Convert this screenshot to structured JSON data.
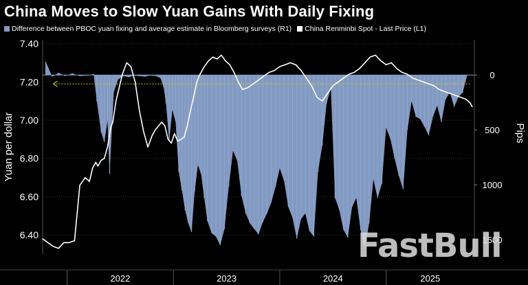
{
  "title": "China Moves to Slow Yuan Gains With Daily Fixing",
  "watermark": "FastBull",
  "colors": {
    "bars": "#8299c2",
    "line": "#ffffff",
    "guide": "#d4d400",
    "background": "#000000"
  },
  "chart_data": {
    "type": "bar",
    "legend": [
      {
        "name": "Difference between PBOC yuan fixing and average estimate in Bloomberg surveys (R1)",
        "color": "#8299c2"
      },
      {
        "name": "China Renminbi Spot - Last Price (L1)",
        "color": "#ffffff"
      }
    ],
    "y_left": {
      "label": "Yuan per dollar",
      "range": [
        6.3,
        7.42
      ],
      "ticks": [
        "7.40",
        "7.20",
        "7.00",
        "6.80",
        "6.60",
        "6.40"
      ]
    },
    "y_right": {
      "label": "Pips",
      "range": [
        1630,
        -320
      ],
      "ticks": [
        "0",
        "500",
        "1000",
        "1500"
      ]
    },
    "x_axis": {
      "range": [
        2021.77,
        2025.83
      ],
      "labels": [
        "2022",
        "2023",
        "2024",
        "2025"
      ]
    },
    "series": [
      {
        "name": "Difference between PBOC yuan fixing and average estimate in Bloomberg surveys (R1)",
        "type": "bar",
        "x": [
          2021.8,
          2021.86,
          2021.92,
          2021.98,
          2022.05,
          2022.12,
          2022.2,
          2022.25,
          2022.28,
          2022.32,
          2022.35,
          2022.38,
          2022.4,
          2022.44,
          2022.48,
          2022.53,
          2022.58,
          2022.63,
          2022.68,
          2022.73,
          2022.78,
          2022.84,
          2022.88,
          2022.91,
          2022.93,
          2022.96,
          2022.99,
          2023.02,
          2023.05,
          2023.08,
          2023.11,
          2023.14,
          2023.17,
          2023.2,
          2023.23,
          2023.26,
          2023.29,
          2023.32,
          2023.36,
          2023.4,
          2023.44,
          2023.48,
          2023.52,
          2023.56,
          2023.6,
          2023.64,
          2023.68,
          2023.72,
          2023.76,
          2023.8,
          2023.84,
          2023.88,
          2023.92,
          2023.96,
          2024.0,
          2024.04,
          2024.08,
          2024.12,
          2024.16,
          2024.2,
          2024.24,
          2024.28,
          2024.32,
          2024.36,
          2024.4,
          2024.44,
          2024.48,
          2024.52,
          2024.56,
          2024.6,
          2024.64,
          2024.68,
          2024.72,
          2024.76,
          2024.8,
          2024.84,
          2024.88,
          2024.92,
          2024.96,
          2025.0,
          2025.04,
          2025.08,
          2025.12,
          2025.16,
          2025.2,
          2025.24,
          2025.28,
          2025.32,
          2025.36,
          2025.4,
          2025.44,
          2025.48,
          2025.52,
          2025.56,
          2025.6,
          2025.64,
          2025.68,
          2025.72,
          2025.76
        ],
        "values": [
          -120,
          15,
          -20,
          10,
          -15,
          10,
          5,
          -10,
          240,
          520,
          610,
          420,
          900,
          150,
          40,
          10,
          20,
          5,
          10,
          15,
          5,
          10,
          30,
          120,
          260,
          600,
          320,
          420,
          880,
          1050,
          1230,
          1350,
          1430,
          1060,
          820,
          900,
          1120,
          1330,
          1440,
          1470,
          1550,
          1400,
          1020,
          690,
          780,
          1100,
          1260,
          1350,
          1400,
          1450,
          1340,
          1260,
          1160,
          1020,
          850,
          960,
          1200,
          1300,
          1490,
          1310,
          1260,
          1420,
          1470,
          880,
          640,
          260,
          120,
          1120,
          1230,
          1410,
          1480,
          1200,
          1120,
          1410,
          1580,
          1350,
          950,
          1120,
          990,
          480,
          580,
          760,
          920,
          1040,
          500,
          240,
          380,
          400,
          470,
          550,
          380,
          280,
          430,
          220,
          160,
          290,
          200,
          160,
          10
        ]
      },
      {
        "name": "China Renminbi Spot - Last Price (L1)",
        "type": "line",
        "x": [
          2021.77,
          2021.82,
          2021.87,
          2021.92,
          2021.97,
          2022.02,
          2022.07,
          2022.12,
          2022.17,
          2022.21,
          2022.24,
          2022.27,
          2022.29,
          2022.32,
          2022.35,
          2022.38,
          2022.41,
          2022.43,
          2022.46,
          2022.49,
          2022.52,
          2022.56,
          2022.6,
          2022.64,
          2022.68,
          2022.72,
          2022.76,
          2022.8,
          2022.83,
          2022.86,
          2022.89,
          2022.92,
          2022.95,
          2022.98,
          2023.01,
          2023.04,
          2023.07,
          2023.1,
          2023.13,
          2023.16,
          2023.19,
          2023.22,
          2023.25,
          2023.29,
          2023.33,
          2023.37,
          2023.41,
          2023.45,
          2023.49,
          2023.53,
          2023.57,
          2023.61,
          2023.65,
          2023.7,
          2023.75,
          2023.8,
          2023.85,
          2023.9,
          2023.95,
          2024.0,
          2024.05,
          2024.1,
          2024.15,
          2024.2,
          2024.25,
          2024.3,
          2024.35,
          2024.4,
          2024.45,
          2024.5,
          2024.55,
          2024.6,
          2024.65,
          2024.7,
          2024.75,
          2024.8,
          2024.85,
          2024.9,
          2024.95,
          2025.0,
          2025.05,
          2025.1,
          2025.15,
          2025.2,
          2025.25,
          2025.3,
          2025.35,
          2025.4,
          2025.45,
          2025.5,
          2025.55,
          2025.6,
          2025.65,
          2025.7,
          2025.75,
          2025.79,
          2025.81
        ],
        "values": [
          6.38,
          6.36,
          6.34,
          6.33,
          6.36,
          6.36,
          6.37,
          6.66,
          6.7,
          6.68,
          6.75,
          6.78,
          6.76,
          6.79,
          6.8,
          6.86,
          6.96,
          6.99,
          7.1,
          7.17,
          7.24,
          7.3,
          7.28,
          7.2,
          7.05,
          6.94,
          6.86,
          6.92,
          6.95,
          6.97,
          6.99,
          6.97,
          6.9,
          6.88,
          6.93,
          6.89,
          6.9,
          6.91,
          6.97,
          7.05,
          7.12,
          7.2,
          7.24,
          7.28,
          7.31,
          7.33,
          7.32,
          7.34,
          7.31,
          7.29,
          7.25,
          7.2,
          7.16,
          7.17,
          7.19,
          7.21,
          7.23,
          7.25,
          7.26,
          7.28,
          7.29,
          7.3,
          7.29,
          7.26,
          7.22,
          7.18,
          7.12,
          7.1,
          7.14,
          7.18,
          7.2,
          7.22,
          7.24,
          7.25,
          7.27,
          7.3,
          7.33,
          7.34,
          7.31,
          7.29,
          7.3,
          7.27,
          7.25,
          7.24,
          7.22,
          7.21,
          7.2,
          7.19,
          7.18,
          7.16,
          7.15,
          7.14,
          7.13,
          7.12,
          7.11,
          7.09,
          7.07
        ]
      }
    ],
    "reference_line": {
      "value": 7.19,
      "style": "dotted",
      "color": "#d4d400",
      "x_range": [
        2021.87,
        2025.8
      ]
    }
  }
}
